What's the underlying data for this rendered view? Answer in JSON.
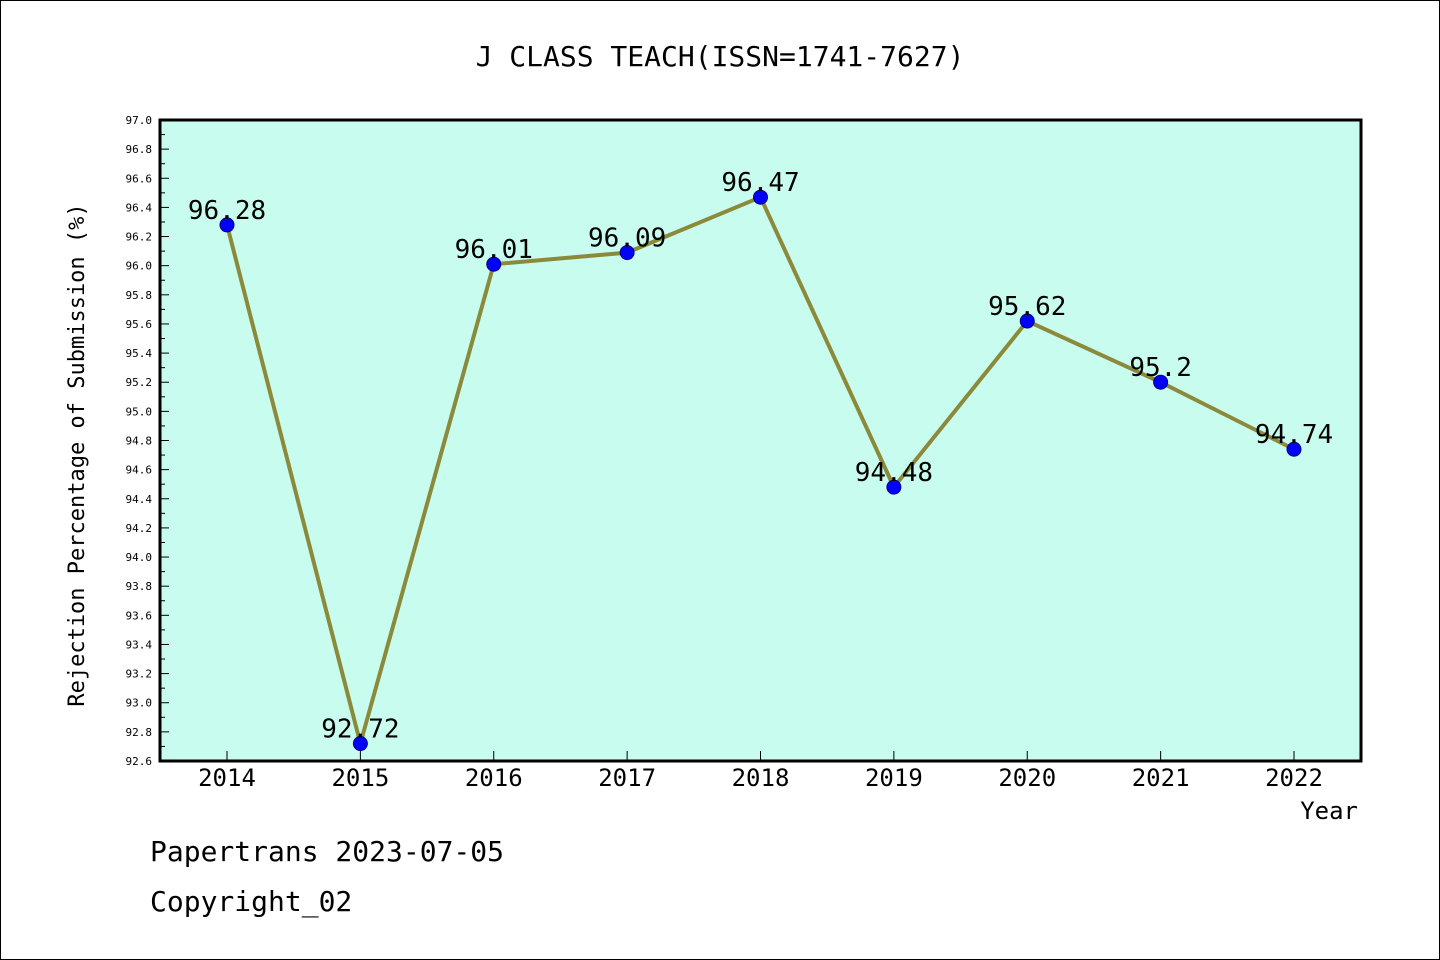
{
  "chart_data": {
    "type": "line",
    "title": "J CLASS TEACH(ISSN=1741-7627)",
    "xlabel": "Year",
    "ylabel": "Rejection Percentage of Submission (%)",
    "categories": [
      "2014",
      "2015",
      "2016",
      "2017",
      "2018",
      "2019",
      "2020",
      "2021",
      "2022"
    ],
    "values": [
      96.28,
      92.72,
      96.01,
      96.09,
      96.47,
      94.48,
      95.62,
      95.2,
      94.74
    ],
    "data_labels": [
      "96.28",
      "92.72",
      "96.01",
      "96.09",
      "96.47",
      "94.48",
      "95.62",
      "95.2",
      "94.74"
    ],
    "ylim": [
      92.6,
      97.0
    ],
    "yticks": [
      "92.6",
      "92.8",
      "93.0",
      "93.2",
      "93.4",
      "93.6",
      "93.8",
      "94.0",
      "94.2",
      "94.4",
      "94.6",
      "94.8",
      "95.0",
      "95.2",
      "95.4",
      "95.6",
      "95.8",
      "96.0",
      "96.2",
      "96.4",
      "96.6",
      "96.8",
      "97.0"
    ],
    "grid": false,
    "colors": {
      "plot_background": "#c8fcee",
      "line": "#8b8a3a",
      "marker": "#0000ff"
    }
  },
  "footer": {
    "date_line": "Papertrans 2023-07-05",
    "copyright_line": "Copyright_02"
  }
}
